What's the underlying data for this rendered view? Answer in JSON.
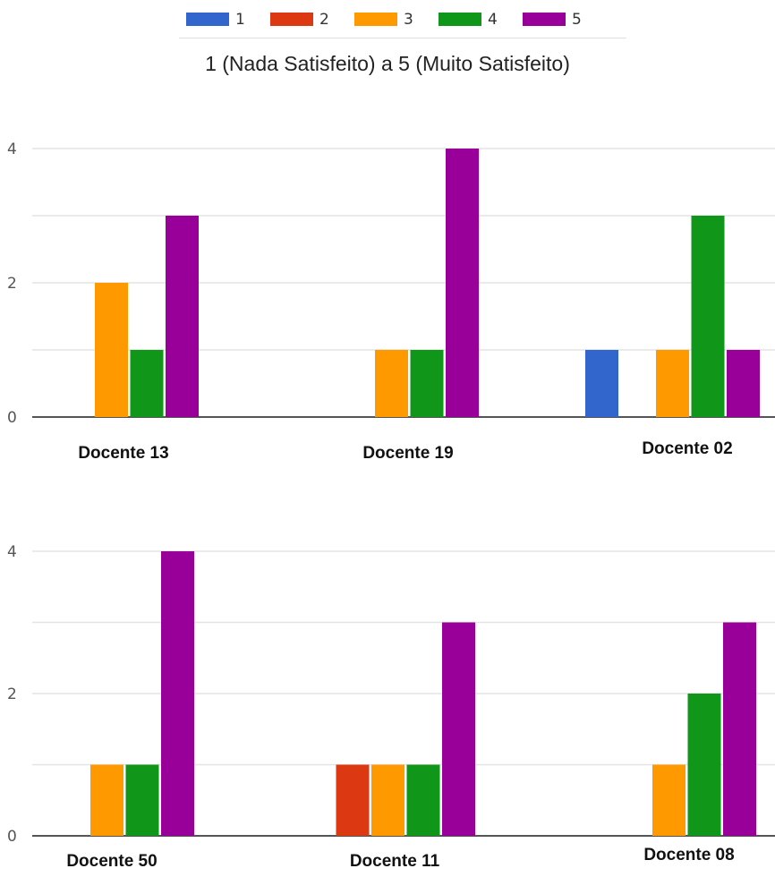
{
  "legend": {
    "items": [
      {
        "label": "1",
        "color": "#3366cc"
      },
      {
        "label": "2",
        "color": "#dc3912"
      },
      {
        "label": "3",
        "color": "#ff9900"
      },
      {
        "label": "4",
        "color": "#109618"
      },
      {
        "label": "5",
        "color": "#990099"
      }
    ]
  },
  "subtitle": "1 (Nada Satisfeito) a 5 (Muito Satisfeito)",
  "chart_data": [
    {
      "type": "bar",
      "categories": [
        "Docente 13",
        "Docente 19",
        "Docente 02"
      ],
      "series": [
        {
          "name": "1",
          "values": [
            0,
            0,
            1
          ]
        },
        {
          "name": "2",
          "values": [
            0,
            0,
            0
          ]
        },
        {
          "name": "3",
          "values": [
            2,
            1,
            1
          ]
        },
        {
          "name": "4",
          "values": [
            1,
            1,
            3
          ]
        },
        {
          "name": "5",
          "values": [
            3,
            4,
            1
          ]
        }
      ],
      "ylim": [
        0,
        4
      ],
      "yticks": [
        "0",
        "2",
        "4"
      ],
      "grid": true,
      "legend": "top-center"
    },
    {
      "type": "bar",
      "categories": [
        "Docente 50",
        "Docente 11",
        "Docente 08"
      ],
      "series": [
        {
          "name": "1",
          "values": [
            0,
            0,
            0
          ]
        },
        {
          "name": "2",
          "values": [
            0,
            1,
            0
          ]
        },
        {
          "name": "3",
          "values": [
            1,
            1,
            1
          ]
        },
        {
          "name": "4",
          "values": [
            1,
            1,
            2
          ]
        },
        {
          "name": "5",
          "values": [
            4,
            3,
            3
          ]
        }
      ],
      "ylim": [
        0,
        4
      ],
      "yticks": [
        "0",
        "2",
        "4"
      ],
      "grid": true,
      "legend": "top-center"
    }
  ]
}
